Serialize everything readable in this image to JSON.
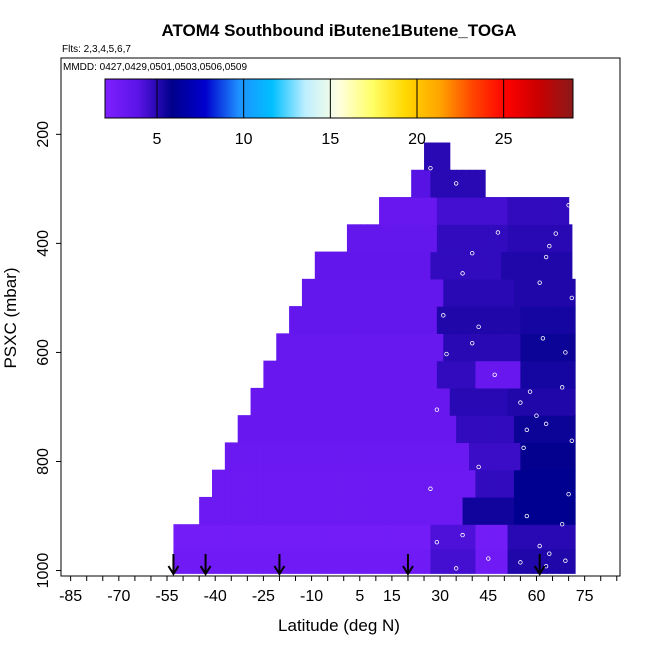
{
  "chart_data": {
    "type": "heatmap",
    "title": "ATOM4 Southbound iButene1Butene_TOGA",
    "flights_label": "Flts: 2,3,4,5,6,7",
    "dates_label": "MMDD: 0427,0429,0501,0503,0506,0509",
    "xlabel": "Latitude (deg N)",
    "ylabel": "PSXC (mbar)",
    "xlim": [
      -88,
      86
    ],
    "ylim": [
      1010,
      60
    ],
    "x_ticks": [
      -85,
      -70,
      -55,
      -40,
      -25,
      -10,
      5,
      15,
      30,
      45,
      60,
      75
    ],
    "y_ticks": [
      200,
      400,
      600,
      800,
      1000
    ],
    "colorbar": {
      "range": [
        2,
        29
      ],
      "ticks": [
        5,
        10,
        15,
        20,
        25
      ],
      "colors": [
        "#7f1fff",
        "#5a14e6",
        "#00008b",
        "#0000cd",
        "#1e90ff",
        "#00bfff",
        "#bfefff",
        "#ffffe0",
        "#ffff66",
        "#ffd700",
        "#ffa500",
        "#ff4500",
        "#ff0000",
        "#c80000",
        "#8b1a1a"
      ]
    },
    "bands": [
      {
        "p_top": 960,
        "p_bot": 1005,
        "lat_min": -53,
        "lat_max": 72,
        "base": 2.8,
        "hi": [
          [
            28,
            40,
            4.4
          ],
          [
            52,
            72,
            5.2
          ]
        ]
      },
      {
        "p_top": 915,
        "p_bot": 960,
        "lat_min": -53,
        "lat_max": 72,
        "base": 2.6,
        "hi": [
          [
            28,
            40,
            4.2
          ],
          [
            52,
            72,
            5.0
          ]
        ]
      },
      {
        "p_top": 865,
        "p_bot": 915,
        "lat_min": -45,
        "lat_max": 72,
        "base": 3.0,
        "hi": [
          [
            38,
            52,
            5.5
          ],
          [
            54,
            72,
            6.0
          ]
        ]
      },
      {
        "p_top": 815,
        "p_bot": 865,
        "lat_min": -41,
        "lat_max": 72,
        "base": 3.0,
        "hi": [
          [
            42,
            52,
            4.8
          ],
          [
            54,
            72,
            6.0
          ]
        ]
      },
      {
        "p_top": 765,
        "p_bot": 815,
        "lat_min": -37,
        "lat_max": 72,
        "base": 3.1,
        "hi": [
          [
            40,
            54,
            4.6
          ],
          [
            56,
            72,
            5.8
          ]
        ]
      },
      {
        "p_top": 715,
        "p_bot": 765,
        "lat_min": -33,
        "lat_max": 72,
        "base": 3.2,
        "hi": [
          [
            36,
            52,
            4.8
          ],
          [
            54,
            72,
            5.6
          ]
        ]
      },
      {
        "p_top": 665,
        "p_bot": 715,
        "lat_min": -29,
        "lat_max": 72,
        "base": 3.2,
        "hi": [
          [
            34,
            50,
            5.0
          ],
          [
            52,
            72,
            5.2
          ]
        ]
      },
      {
        "p_top": 615,
        "p_bot": 665,
        "lat_min": -25,
        "lat_max": 72,
        "base": 3.2,
        "hi": [
          [
            30,
            40,
            4.8
          ],
          [
            56,
            72,
            5.4
          ]
        ]
      },
      {
        "p_top": 565,
        "p_bot": 615,
        "lat_min": -21,
        "lat_max": 72,
        "base": 3.3,
        "hi": [
          [
            32,
            54,
            5.0
          ],
          [
            56,
            72,
            5.6
          ]
        ]
      },
      {
        "p_top": 515,
        "p_bot": 565,
        "lat_min": -17,
        "lat_max": 72,
        "base": 3.4,
        "hi": [
          [
            30,
            54,
            5.2
          ],
          [
            56,
            72,
            5.4
          ]
        ]
      },
      {
        "p_top": 465,
        "p_bot": 515,
        "lat_min": -13,
        "lat_max": 72,
        "base": 3.4,
        "hi": [
          [
            32,
            52,
            5.0
          ],
          [
            54,
            72,
            5.2
          ]
        ]
      },
      {
        "p_top": 415,
        "p_bot": 465,
        "lat_min": -9,
        "lat_max": 71,
        "base": 3.5,
        "hi": [
          [
            28,
            48,
            4.8
          ],
          [
            50,
            71,
            5.2
          ]
        ]
      },
      {
        "p_top": 365,
        "p_bot": 415,
        "lat_min": 1,
        "lat_max": 71,
        "base": 3.4,
        "hi": [
          [
            30,
            50,
            4.8
          ],
          [
            52,
            71,
            5.0
          ]
        ]
      },
      {
        "p_top": 315,
        "p_bot": 365,
        "lat_min": 11,
        "lat_max": 70,
        "base": 3.2,
        "hi": [
          [
            30,
            50,
            4.4
          ],
          [
            52,
            70,
            4.8
          ]
        ]
      },
      {
        "p_top": 265,
        "p_bot": 315,
        "lat_min": 21,
        "lat_max": 44,
        "base": 4.0,
        "hi": [
          [
            28,
            44,
            5.0
          ]
        ]
      },
      {
        "p_top": 215,
        "p_bot": 265,
        "lat_min": 25,
        "lat_max": 33,
        "base": 5.0,
        "hi": []
      }
    ],
    "sample_points": [
      [
        27,
        262
      ],
      [
        35,
        290
      ],
      [
        70,
        330
      ],
      [
        48,
        380
      ],
      [
        66,
        382
      ],
      [
        64,
        405
      ],
      [
        40,
        418
      ],
      [
        63,
        425
      ],
      [
        37,
        455
      ],
      [
        61,
        472
      ],
      [
        71,
        500
      ],
      [
        31,
        532
      ],
      [
        42,
        553
      ],
      [
        62,
        574
      ],
      [
        69,
        600
      ],
      [
        40,
        583
      ],
      [
        32,
        603
      ],
      [
        47,
        641
      ],
      [
        68,
        664
      ],
      [
        58,
        672
      ],
      [
        55,
        692
      ],
      [
        29,
        705
      ],
      [
        60,
        716
      ],
      [
        63,
        731
      ],
      [
        57,
        742
      ],
      [
        71,
        762
      ],
      [
        56,
        775
      ],
      [
        42,
        810
      ],
      [
        27,
        850
      ],
      [
        70,
        860
      ],
      [
        57,
        900
      ],
      [
        68,
        915
      ],
      [
        37,
        935
      ],
      [
        29,
        948
      ],
      [
        61,
        955
      ],
      [
        64,
        969
      ],
      [
        45,
        978
      ],
      [
        55,
        985
      ],
      [
        63,
        992
      ],
      [
        35,
        996
      ],
      [
        69,
        982
      ]
    ],
    "arrows_lat": [
      -53,
      -43,
      -20,
      20,
      61
    ]
  }
}
